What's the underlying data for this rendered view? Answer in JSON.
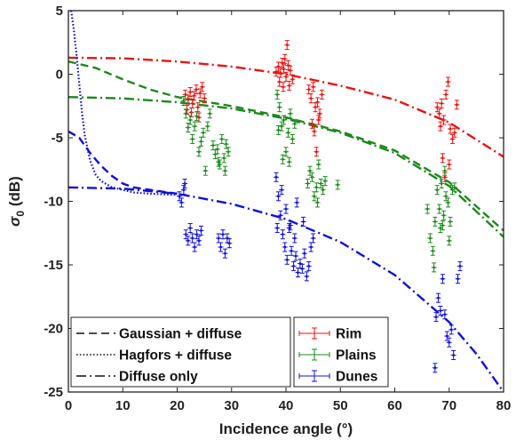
{
  "chart_data": {
    "type": "scatter",
    "xlabel": "Incidence angle (°)",
    "ylabel_symbol": "σ",
    "ylabel_subscript": "0",
    "ylabel_unit": " (dB)",
    "xlim": [
      0,
      80
    ],
    "ylim": [
      -25,
      5
    ],
    "xticks": [
      0,
      10,
      20,
      30,
      40,
      50,
      60,
      70,
      80
    ],
    "yticks": [
      5,
      0,
      -5,
      -10,
      -15,
      -20,
      -25
    ],
    "grid": false,
    "model_legend_placement": "bottom-left",
    "data_legend_placement": "bottom-center",
    "series": [
      {
        "name": "Rim",
        "color": "#ee1111",
        "points": [
          [
            21.5,
            -1.6
          ],
          [
            22.0,
            -2.0
          ],
          [
            22.4,
            -1.4
          ],
          [
            22.8,
            -2.3
          ],
          [
            23.1,
            -1.7
          ],
          [
            23.5,
            -1.2
          ],
          [
            23.8,
            -2.6
          ],
          [
            24.2,
            -1.5
          ],
          [
            24.6,
            -1.0
          ],
          [
            25.0,
            -1.9
          ],
          [
            22.6,
            -3.0
          ],
          [
            24.0,
            -3.4
          ],
          [
            21.8,
            -2.8
          ],
          [
            38.2,
            0.2
          ],
          [
            38.6,
            0.6
          ],
          [
            39.0,
            0.1
          ],
          [
            39.3,
            0.9
          ],
          [
            39.6,
            0.4
          ],
          [
            40.0,
            -0.2
          ],
          [
            40.4,
            0.7
          ],
          [
            40.8,
            0.3
          ],
          [
            41.2,
            -0.4
          ],
          [
            38.8,
            -0.6
          ],
          [
            39.8,
            1.2
          ],
          [
            40.2,
            2.3
          ],
          [
            39.5,
            -1.0
          ],
          [
            40.6,
            -0.9
          ],
          [
            44.2,
            -1.2
          ],
          [
            44.6,
            -1.9
          ],
          [
            45.0,
            -1.0
          ],
          [
            45.4,
            -2.6
          ],
          [
            45.8,
            -2.2
          ],
          [
            46.2,
            -3.1
          ],
          [
            46.6,
            -1.6
          ],
          [
            45.2,
            -4.5
          ],
          [
            45.6,
            -6.1
          ],
          [
            46.0,
            -3.6
          ],
          [
            44.8,
            -3.9
          ],
          [
            67.8,
            -2.6
          ],
          [
            68.2,
            -3.1
          ],
          [
            68.6,
            -2.3
          ],
          [
            69.0,
            -3.6
          ],
          [
            68.4,
            -4.1
          ],
          [
            69.4,
            -1.6
          ],
          [
            69.8,
            -0.6
          ],
          [
            70.2,
            -4.3
          ],
          [
            70.6,
            -5.1
          ],
          [
            71.0,
            -4.6
          ],
          [
            71.4,
            -2.4
          ],
          [
            68.8,
            -6.6
          ],
          [
            69.2,
            -8.1
          ],
          [
            70.0,
            -7.1
          ]
        ]
      },
      {
        "name": "Plains",
        "color": "#1a8a1a",
        "points": [
          [
            21.2,
            -2.1
          ],
          [
            21.6,
            -3.1
          ],
          [
            22.0,
            -4.2
          ],
          [
            22.4,
            -3.6
          ],
          [
            22.8,
            -5.1
          ],
          [
            23.2,
            -4.1
          ],
          [
            23.6,
            -3.3
          ],
          [
            24.0,
            -6.1
          ],
          [
            24.4,
            -5.3
          ],
          [
            24.8,
            -4.6
          ],
          [
            25.2,
            -7.6
          ],
          [
            25.6,
            -4.1
          ],
          [
            26.0,
            -3.1
          ],
          [
            26.6,
            -5.6
          ],
          [
            27.0,
            -6.3
          ],
          [
            27.4,
            -5.9
          ],
          [
            27.8,
            -7.1
          ],
          [
            28.2,
            -5.1
          ],
          [
            28.6,
            -6.6
          ],
          [
            29.0,
            -5.5
          ],
          [
            29.4,
            -6.1
          ],
          [
            28.8,
            -7.6
          ],
          [
            27.6,
            -6.9
          ],
          [
            38.4,
            -1.6
          ],
          [
            38.8,
            -2.6
          ],
          [
            39.2,
            -4.1
          ],
          [
            39.6,
            -3.6
          ],
          [
            40.0,
            -6.1
          ],
          [
            40.4,
            -4.6
          ],
          [
            40.8,
            -3.1
          ],
          [
            41.2,
            -5.1
          ],
          [
            39.4,
            -6.7
          ],
          [
            40.6,
            -6.9
          ],
          [
            41.6,
            -3.9
          ],
          [
            38.6,
            -4.4
          ],
          [
            44.0,
            -8.6
          ],
          [
            44.4,
            -7.6
          ],
          [
            44.8,
            -8.1
          ],
          [
            45.2,
            -9.6
          ],
          [
            45.6,
            -8.9
          ],
          [
            46.0,
            -7.1
          ],
          [
            46.4,
            -8.6
          ],
          [
            46.8,
            -9.1
          ],
          [
            47.2,
            -8.4
          ],
          [
            45.8,
            -10.1
          ],
          [
            49.5,
            -8.7
          ],
          [
            66.5,
            -12.9
          ],
          [
            67.0,
            -13.9
          ],
          [
            67.4,
            -11.6
          ],
          [
            67.8,
            -9.1
          ],
          [
            68.2,
            -10.6
          ],
          [
            68.6,
            -8.6
          ],
          [
            69.0,
            -11.1
          ],
          [
            69.4,
            -9.6
          ],
          [
            69.8,
            -10.1
          ],
          [
            70.2,
            -11.6
          ],
          [
            70.6,
            -9.1
          ],
          [
            71.0,
            -8.9
          ],
          [
            68.4,
            -12.1
          ],
          [
            69.2,
            -7.6
          ],
          [
            70.0,
            -13.1
          ],
          [
            68.8,
            -11.9
          ],
          [
            67.2,
            -15.2
          ],
          [
            66.0,
            -10.6
          ]
        ]
      },
      {
        "name": "Dunes",
        "color": "#1010dd",
        "points": [
          [
            20.4,
            -9.6
          ],
          [
            20.8,
            -10.1
          ],
          [
            21.2,
            -9.1
          ],
          [
            21.6,
            -12.6
          ],
          [
            22.0,
            -13.1
          ],
          [
            22.4,
            -12.1
          ],
          [
            22.8,
            -12.9
          ],
          [
            23.2,
            -13.6
          ],
          [
            23.6,
            -12.6
          ],
          [
            24.0,
            -13.1
          ],
          [
            24.4,
            -12.3
          ],
          [
            21.4,
            -8.6
          ],
          [
            27.6,
            -12.9
          ],
          [
            28.0,
            -13.6
          ],
          [
            28.4,
            -12.6
          ],
          [
            28.8,
            -14.1
          ],
          [
            29.2,
            -12.9
          ],
          [
            29.6,
            -13.3
          ],
          [
            38.2,
            -8.1
          ],
          [
            38.6,
            -9.6
          ],
          [
            39.0,
            -11.1
          ],
          [
            39.4,
            -12.6
          ],
          [
            39.8,
            -13.6
          ],
          [
            40.2,
            -14.6
          ],
          [
            40.6,
            -12.1
          ],
          [
            41.0,
            -13.9
          ],
          [
            41.4,
            -15.1
          ],
          [
            41.8,
            -14.3
          ],
          [
            42.2,
            -15.6
          ],
          [
            42.6,
            -14.9
          ],
          [
            43.0,
            -15.3
          ],
          [
            43.4,
            -14.1
          ],
          [
            43.8,
            -15.9
          ],
          [
            44.2,
            -15.1
          ],
          [
            44.6,
            -13.6
          ],
          [
            45.0,
            -12.9
          ],
          [
            39.2,
            -9.1
          ],
          [
            40.0,
            -10.6
          ],
          [
            40.8,
            -11.9
          ],
          [
            41.6,
            -12.9
          ],
          [
            42.0,
            -10.1
          ],
          [
            43.2,
            -11.6
          ],
          [
            38.4,
            -12.1
          ],
          [
            67.6,
            -19.1
          ],
          [
            68.0,
            -17.6
          ],
          [
            68.4,
            -18.6
          ],
          [
            68.8,
            -16.1
          ],
          [
            69.2,
            -18.9
          ],
          [
            69.6,
            -20.6
          ],
          [
            70.0,
            -21.1
          ],
          [
            70.4,
            -20.1
          ],
          [
            70.8,
            -22.1
          ],
          [
            67.4,
            -23.1
          ],
          [
            71.6,
            -16.1
          ],
          [
            72.0,
            -15.1
          ]
        ]
      }
    ],
    "models": [
      {
        "name": "Gaussian + diffuse",
        "style": "dashed"
      },
      {
        "name": "Hagfors + diffuse",
        "style": "dotted"
      },
      {
        "name": "Diffuse only",
        "style": "dashdot"
      }
    ],
    "model_curves": [
      {
        "surface": "Rim",
        "style": "dashdot",
        "color": "#ee1111",
        "x": [
          0,
          10,
          20,
          30,
          40,
          50,
          60,
          70,
          80
        ],
        "y": [
          1.3,
          1.25,
          1.0,
          0.6,
          0.0,
          -0.9,
          -2.0,
          -3.8,
          -6.5
        ]
      },
      {
        "surface": "Plains",
        "style": "dashed",
        "color": "#1a8a1a",
        "x": [
          0,
          5,
          10,
          15,
          20,
          30,
          40,
          50,
          60,
          70,
          80
        ],
        "y": [
          1.0,
          0.5,
          -0.4,
          -1.2,
          -1.8,
          -2.5,
          -3.4,
          -4.5,
          -6.0,
          -8.5,
          -12.3
        ]
      },
      {
        "surface": "Plains",
        "style": "dashdot",
        "color": "#1a8a1a",
        "x": [
          0,
          10,
          20,
          30,
          40,
          50,
          60,
          70,
          80
        ],
        "y": [
          -1.8,
          -1.9,
          -2.2,
          -2.7,
          -3.5,
          -4.6,
          -6.2,
          -8.8,
          -12.8
        ]
      },
      {
        "surface": "Dunes",
        "style": "dashed",
        "color": "#1010dd",
        "x": [
          0,
          2,
          4,
          6,
          8,
          10,
          12,
          15,
          20
        ],
        "y": [
          -4.5,
          -5.0,
          -6.2,
          -7.2,
          -8.0,
          -8.6,
          -8.9,
          -9.1,
          -9.4
        ]
      },
      {
        "surface": "Dunes",
        "style": "dotted",
        "color": "#1010dd",
        "x": [
          0.5,
          1,
          1.5,
          2,
          2.5,
          3,
          4,
          5,
          6,
          8,
          10,
          12,
          15,
          20
        ],
        "y": [
          5.0,
          3.5,
          1.5,
          -0.8,
          -3.0,
          -4.8,
          -6.8,
          -7.9,
          -8.4,
          -8.9,
          -9.1,
          -9.3,
          -9.4,
          -9.5
        ]
      },
      {
        "surface": "Dunes",
        "style": "dashdot",
        "color": "#1010dd",
        "x": [
          0,
          10,
          20,
          30,
          40,
          50,
          60,
          70,
          75,
          80
        ],
        "y": [
          -8.9,
          -9.0,
          -9.4,
          -10.2,
          -11.4,
          -13.2,
          -15.8,
          -19.5,
          -22.0,
          -25.0
        ]
      }
    ]
  }
}
